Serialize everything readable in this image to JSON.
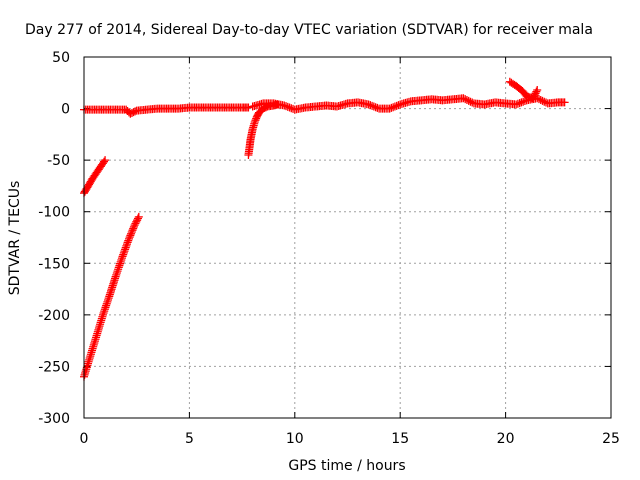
{
  "chart_data": {
    "type": "scatter",
    "title": "Day 277 of 2014, Sidereal Day-to-day VTEC variation (SDTVAR) for receiver mala",
    "xlabel": "GPS time / hours",
    "ylabel": "SDTVAR / TECUs",
    "xlim": [
      0,
      25
    ],
    "ylim": [
      -300,
      50
    ],
    "xticks": [
      0,
      5,
      10,
      15,
      20,
      25
    ],
    "yticks": [
      -300,
      -250,
      -200,
      -150,
      -100,
      -50,
      0,
      50
    ],
    "grid": true,
    "marker": "plus",
    "color": "#ff0000",
    "segments": [
      {
        "x": [
          0.0,
          0.2,
          0.4,
          0.6,
          0.8,
          1.0
        ],
        "y": [
          -82,
          -75,
          -68,
          -62,
          -56,
          -50
        ]
      },
      {
        "x": [
          0.0,
          0.3,
          0.6,
          0.9,
          1.2,
          1.5,
          1.8,
          2.1,
          2.4,
          2.6
        ],
        "y": [
          -260,
          -240,
          -220,
          -200,
          -182,
          -163,
          -145,
          -128,
          -113,
          -105
        ]
      },
      {
        "x": [
          0.0,
          0.5,
          1.0,
          1.5,
          2.0,
          2.2,
          2.5,
          3.0,
          3.5,
          4.0,
          4.5,
          5.0,
          5.5,
          6.0,
          6.5,
          7.0,
          7.5,
          7.8
        ],
        "y": [
          -1,
          -1,
          -1,
          -1,
          -1,
          -5,
          -2,
          -1,
          0,
          0,
          0,
          1,
          1,
          1,
          1,
          1,
          1,
          1
        ]
      },
      {
        "x": [
          7.8,
          7.85,
          7.9,
          8.0,
          8.1,
          8.2,
          8.3,
          8.5,
          8.7,
          9.0,
          9.2
        ],
        "y": [
          -45,
          -38,
          -30,
          -20,
          -13,
          -8,
          -4,
          0,
          2,
          3,
          4
        ]
      },
      {
        "x": [
          8.0,
          8.5,
          9.0,
          9.5,
          10.0,
          10.5,
          11.0,
          11.5,
          12.0,
          12.5,
          13.0,
          13.5,
          14.0,
          14.5,
          15.0,
          15.5,
          16.0,
          16.5,
          17.0,
          17.5,
          18.0,
          18.5,
          19.0,
          19.5,
          20.0,
          20.5,
          21.0,
          21.5,
          22.0,
          22.5,
          22.8
        ],
        "y": [
          2,
          5,
          5,
          3,
          -1,
          1,
          2,
          3,
          2,
          5,
          6,
          4,
          0,
          0,
          4,
          7,
          8,
          9,
          8,
          9,
          10,
          5,
          4,
          6,
          5,
          4,
          8,
          10,
          5,
          6,
          6
        ]
      },
      {
        "x": [
          20.2,
          20.5,
          20.8,
          21.0,
          21.3,
          21.5
        ],
        "y": [
          26,
          22,
          17,
          12,
          10,
          18
        ]
      }
    ]
  }
}
